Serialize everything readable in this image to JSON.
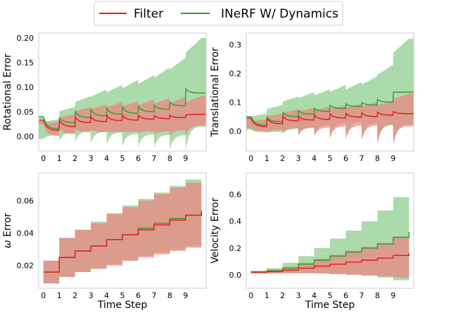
{
  "legend": {
    "entries": [
      {
        "label": "Filter",
        "color": "#e41a1c"
      },
      {
        "label": "INeRF W/ Dynamics",
        "color": "#2ca02c"
      }
    ]
  },
  "colors": {
    "filter_line": "#e41a1c",
    "filter_band": "#f08080",
    "inerf_line": "#2ca02c",
    "inerf_band": "#8fce8f",
    "overlap": "#b08a68"
  },
  "chart_data": [
    {
      "type": "line",
      "title": "",
      "xlabel": "",
      "ylabel": "Rotational Error",
      "x_ticks": [
        0,
        1,
        2,
        3,
        4,
        5,
        6,
        7,
        8,
        9
      ],
      "xlim": [
        -0.3,
        10.3
      ],
      "ylim": [
        -0.03,
        0.21
      ],
      "y_ticks": [
        0.0,
        0.05,
        0.1,
        0.15,
        0.2
      ],
      "y_tick_labels": [
        "0.00",
        "0.05",
        "0.10",
        "0.15",
        "0.20"
      ],
      "series": [
        {
          "name": "Filter",
          "start": [
            0.033,
            0.034,
            0.04,
            0.04,
            0.043,
            0.043,
            0.043,
            0.043,
            0.043,
            0.043
          ],
          "end": [
            0.012,
            0.02,
            0.028,
            0.03,
            0.032,
            0.033,
            0.035,
            0.036,
            0.038,
            0.045
          ],
          "lower_start": [
            0.025,
            0.02,
            0.018,
            0.015,
            0.012,
            0.01,
            0.006,
            0.004,
            0.002,
            0.0
          ],
          "upper_end": [
            0.03,
            0.045,
            0.06,
            0.065,
            0.07,
            0.072,
            0.075,
            0.078,
            0.08,
            0.082
          ]
        },
        {
          "name": "INeRF W/ Dynamics",
          "start": [
            0.04,
            0.038,
            0.052,
            0.055,
            0.058,
            0.06,
            0.062,
            0.064,
            0.07,
            0.097
          ],
          "end": [
            0.015,
            0.028,
            0.038,
            0.042,
            0.045,
            0.047,
            0.05,
            0.055,
            0.062,
            0.088
          ],
          "lower_start": [
            -0.005,
            -0.01,
            -0.013,
            -0.015,
            -0.018,
            -0.02,
            -0.022,
            -0.025,
            -0.027,
            -0.03
          ],
          "upper_end": [
            0.035,
            0.06,
            0.082,
            0.095,
            0.105,
            0.115,
            0.125,
            0.14,
            0.16,
            0.2
          ]
        }
      ]
    },
    {
      "type": "line",
      "title": "",
      "xlabel": "",
      "ylabel": "Translational Error",
      "x_ticks": [
        0,
        1,
        2,
        3,
        4,
        5,
        6,
        7,
        8,
        9
      ],
      "xlim": [
        -0.3,
        10.3
      ],
      "ylim": [
        -0.07,
        0.34
      ],
      "y_ticks": [
        0.0,
        0.1,
        0.2,
        0.3
      ],
      "y_tick_labels": [
        "0.0",
        "0.1",
        "0.2",
        "0.3"
      ],
      "series": [
        {
          "name": "Filter",
          "start": [
            0.045,
            0.045,
            0.052,
            0.052,
            0.057,
            0.06,
            0.062,
            0.064,
            0.066,
            0.068
          ],
          "end": [
            0.015,
            0.025,
            0.035,
            0.038,
            0.04,
            0.045,
            0.048,
            0.05,
            0.055,
            0.06
          ],
          "lower_start": [
            0.01,
            -0.005,
            -0.01,
            -0.015,
            -0.02,
            -0.025,
            -0.03,
            -0.035,
            -0.045,
            -0.05
          ],
          "upper_end": [
            0.04,
            0.06,
            0.075,
            0.08,
            0.085,
            0.09,
            0.095,
            0.1,
            0.105,
            0.13
          ]
        },
        {
          "name": "INeRF W/ Dynamics",
          "start": [
            0.05,
            0.048,
            0.065,
            0.072,
            0.08,
            0.09,
            0.095,
            0.1,
            0.11,
            0.135
          ],
          "end": [
            0.02,
            0.032,
            0.05,
            0.058,
            0.068,
            0.078,
            0.085,
            0.09,
            0.1,
            0.135
          ],
          "lower_start": [
            0.005,
            -0.005,
            -0.01,
            -0.015,
            -0.02,
            -0.025,
            -0.03,
            -0.035,
            -0.045,
            -0.05
          ],
          "upper_end": [
            0.06,
            0.09,
            0.12,
            0.135,
            0.145,
            0.16,
            0.17,
            0.19,
            0.23,
            0.32
          ]
        }
      ]
    },
    {
      "type": "step",
      "title": "",
      "xlabel": "Time Step",
      "ylabel": "ω Error",
      "ylabel_symbol": "ω",
      "ylabel_rest": " Error",
      "x_ticks": [
        0,
        1,
        2,
        3,
        4,
        5,
        6,
        7,
        8,
        9
      ],
      "xlim": [
        -0.3,
        10.3
      ],
      "ylim": [
        0.006,
        0.077
      ],
      "y_ticks": [
        0.02,
        0.04,
        0.06
      ],
      "y_tick_labels": [
        "0.02",
        "0.04",
        "0.06"
      ],
      "series": [
        {
          "name": "Filter",
          "values": [
            0.016,
            0.025,
            0.029,
            0.032,
            0.036,
            0.039,
            0.042,
            0.045,
            0.048,
            0.051,
            0.053
          ],
          "lower": [
            0.009,
            0.013,
            0.016,
            0.018,
            0.02,
            0.023,
            0.025,
            0.027,
            0.029,
            0.031,
            0.033
          ],
          "upper": [
            0.023,
            0.037,
            0.042,
            0.046,
            0.052,
            0.056,
            0.06,
            0.064,
            0.068,
            0.071,
            0.073
          ]
        },
        {
          "name": "INeRF W/ Dynamics",
          "values": [
            0.016,
            0.025,
            0.029,
            0.032,
            0.036,
            0.039,
            0.043,
            0.046,
            0.049,
            0.051,
            0.054
          ],
          "lower": [
            0.009,
            0.013,
            0.016,
            0.018,
            0.021,
            0.023,
            0.026,
            0.028,
            0.03,
            0.032,
            0.034
          ],
          "upper": [
            0.023,
            0.037,
            0.042,
            0.047,
            0.052,
            0.057,
            0.061,
            0.065,
            0.069,
            0.073,
            0.075
          ]
        }
      ]
    },
    {
      "type": "step",
      "title": "",
      "xlabel": "Time Step",
      "ylabel": "Velocity Error",
      "x_ticks": [
        0,
        1,
        2,
        3,
        4,
        5,
        6,
        7,
        8,
        9
      ],
      "xlim": [
        -0.3,
        10.3
      ],
      "ylim": [
        -0.1,
        0.76
      ],
      "y_ticks": [
        0.0,
        0.2,
        0.4,
        0.6
      ],
      "y_tick_labels": [
        "0.0",
        "0.2",
        "0.4",
        "0.6"
      ],
      "series": [
        {
          "name": "Filter",
          "values": [
            0.02,
            0.025,
            0.035,
            0.05,
            0.065,
            0.08,
            0.095,
            0.11,
            0.125,
            0.145,
            0.16
          ],
          "lower": [
            0.01,
            0.01,
            0.012,
            0.012,
            0.01,
            0.005,
            0.0,
            -0.005,
            -0.01,
            -0.02,
            -0.03
          ],
          "upper": [
            0.03,
            0.04,
            0.06,
            0.09,
            0.12,
            0.15,
            0.18,
            0.21,
            0.24,
            0.28,
            0.32
          ]
        },
        {
          "name": "INeRF W/ Dynamics",
          "values": [
            0.02,
            0.03,
            0.05,
            0.08,
            0.11,
            0.14,
            0.17,
            0.2,
            0.23,
            0.28,
            0.32
          ],
          "lower": [
            0.01,
            0.012,
            0.015,
            0.015,
            0.012,
            0.008,
            0.002,
            -0.005,
            -0.02,
            -0.04,
            -0.05
          ],
          "upper": [
            0.03,
            0.05,
            0.09,
            0.14,
            0.2,
            0.27,
            0.33,
            0.4,
            0.48,
            0.58,
            0.69
          ]
        }
      ]
    }
  ]
}
